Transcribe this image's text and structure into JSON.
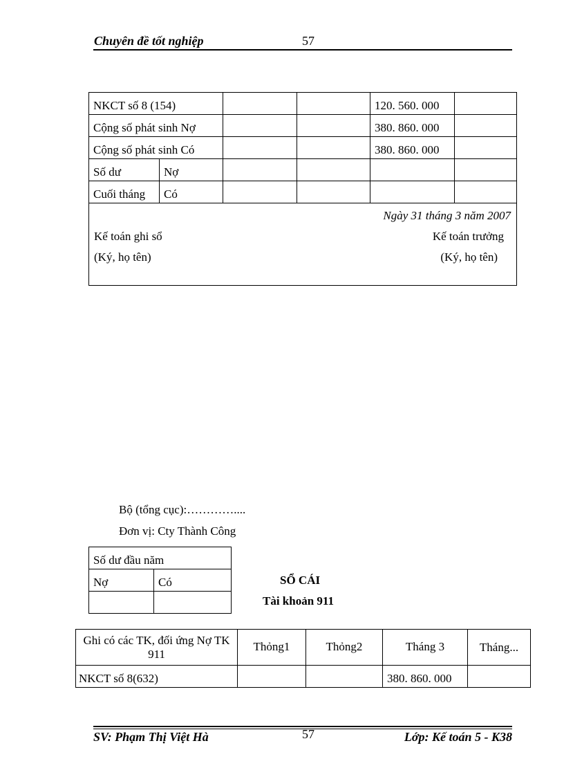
{
  "header": {
    "title": "Chuyên đề tốt nghiệp",
    "page_number": "57"
  },
  "ledger_top": {
    "rows": [
      {
        "label": "NKCT số 8 (154)",
        "c1": "",
        "c2": "",
        "c3": "120. 560. 000",
        "c4": ""
      },
      {
        "label": "Cộng số phát sinh Nợ",
        "c1": "",
        "c2": "",
        "c3": "380. 860. 000",
        "c4": ""
      },
      {
        "label": "Cộng số phát sinh Có",
        "c1": "",
        "c2": "",
        "c3": "380. 860. 000",
        "c4": ""
      }
    ],
    "balance": {
      "label1": "Số dư",
      "label2": "Cuối tháng",
      "no": "Nợ",
      "co": "Có"
    },
    "date": "Ngày 31 tháng 3 năm 2007",
    "signer_left": {
      "title": "Kế toán ghi sổ",
      "note": "(Ký, họ tên)"
    },
    "signer_right": {
      "title": "Kế toán trưởng",
      "note": "(Ký, họ tên)"
    }
  },
  "org": {
    "ministry": "Bộ (tổng cục):…………....",
    "unit": "Đơn vị: Cty Thành Công"
  },
  "opening_balance": {
    "title": "Số dư đầu năm",
    "no": "Nợ",
    "co": "Có"
  },
  "ledger": {
    "title": "SỔ CÁI",
    "account": "Tài khoản 911"
  },
  "ledger_table": {
    "headers": [
      "Ghi có các TK, đối ứng Nợ TK 911",
      "Thỏng1",
      "Thỏng2",
      "Tháng 3",
      "Tháng..."
    ],
    "rows": [
      [
        "NKCT số 8(632)",
        "",
        "",
        "380. 860. 000",
        ""
      ]
    ]
  },
  "footer": {
    "student": "SV: Phạm Thị Việt Hà",
    "page_number": "57",
    "class": "Lớp: Kế toán 5 - K38"
  }
}
